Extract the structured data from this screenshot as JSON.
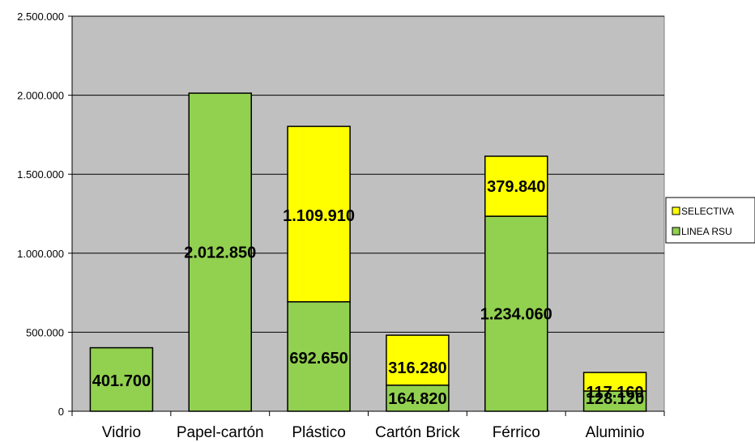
{
  "chart_data": {
    "type": "bar",
    "stacked": true,
    "categories": [
      "Vidrio",
      "Papel-cartón",
      "Plástico",
      "Cartón Brick",
      "Férrico",
      "Aluminio"
    ],
    "series": [
      {
        "name": "LINEA RSU",
        "color": "#92d050",
        "values": [
          401700,
          2012850,
          692650,
          164820,
          1234060,
          128120
        ],
        "labels": [
          "401.700",
          "2.012.850",
          "692.650",
          "164.820",
          "1.234.060",
          "128.120"
        ]
      },
      {
        "name": "SELECTIVA",
        "color": "#ffff00",
        "values": [
          0,
          0,
          1109910,
          316280,
          379840,
          117160
        ],
        "labels": [
          "",
          "",
          "1.109.910",
          "316.280",
          "379.840",
          "117.160"
        ]
      }
    ],
    "ylim": [
      0,
      2500000
    ],
    "yticks": [
      0,
      500000,
      1000000,
      1500000,
      2000000,
      2500000
    ],
    "ytick_labels": [
      "0",
      "500.000",
      "1.000.000",
      "1.500.000",
      "2.000.000",
      "2.500.000"
    ],
    "grid": true,
    "plot_background": "#c0c0c0",
    "legend_position": "right",
    "legend_order": [
      "SELECTIVA",
      "LINEA RSU"
    ],
    "title": "",
    "xlabel": "",
    "ylabel": ""
  }
}
